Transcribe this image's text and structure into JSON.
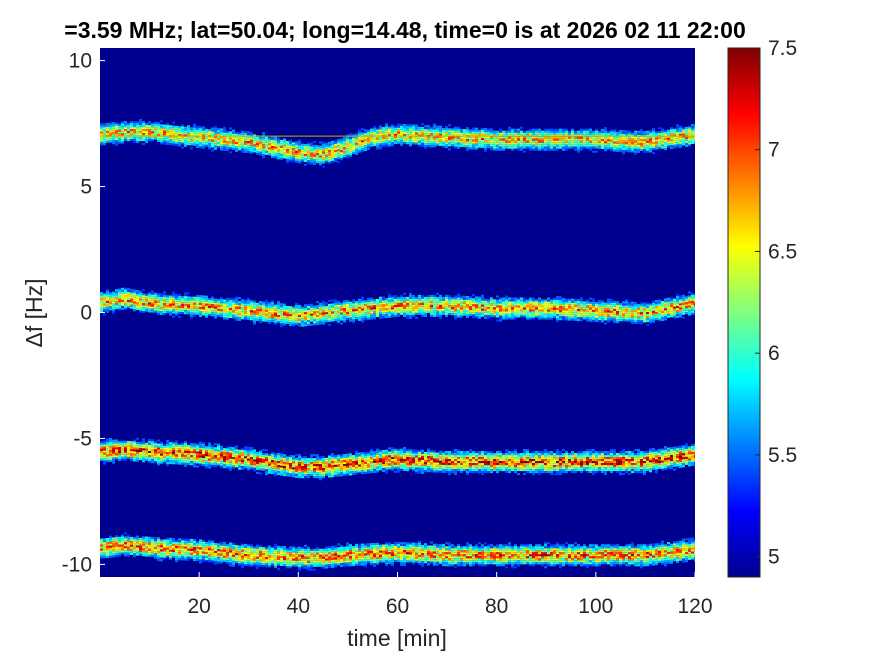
{
  "chart_data": {
    "type": "heatmap",
    "title": "=3.59 MHz;  lat=50.04; long=14.48, time=0 is at 2026 02 11 22:00",
    "xlabel": "time [min]",
    "ylabel": "Δf [Hz]",
    "xlim": [
      0,
      120
    ],
    "ylim": [
      -10.5,
      10.5
    ],
    "xticks": [
      "20",
      "40",
      "60",
      "80",
      "100",
      "120"
    ],
    "yticks": [
      "10",
      "5",
      "0",
      "-5",
      "-10"
    ],
    "background_level": 5.0,
    "colorbar": {
      "range": [
        4.9,
        7.5
      ],
      "ticks": [
        "7.5",
        "7",
        "6.5",
        "6",
        "5.5",
        "5"
      ],
      "colormap": "jet"
    },
    "horizontal_line_hz": 7.0,
    "bands": [
      {
        "name": "",
        "peak": 7.0,
        "t": [
          0,
          5,
          10,
          20,
          30,
          40,
          45,
          50,
          55,
          60,
          70,
          80,
          90,
          100,
          110,
          120
        ],
        "df": [
          7.1,
          7.2,
          7.2,
          7.0,
          6.8,
          6.4,
          6.3,
          6.6,
          7.0,
          7.1,
          7.0,
          6.9,
          6.9,
          6.9,
          6.8,
          7.1
        ]
      },
      {
        "name": "",
        "peak": 7.1,
        "t": [
          0,
          5,
          10,
          20,
          30,
          40,
          45,
          50,
          60,
          70,
          80,
          90,
          100,
          110,
          120
        ],
        "df": [
          0.4,
          0.6,
          0.4,
          0.3,
          0.1,
          -0.1,
          0.0,
          0.1,
          0.3,
          0.3,
          0.2,
          0.2,
          0.1,
          0.0,
          0.4
        ]
      },
      {
        "name": "",
        "peak": 7.4,
        "t": [
          0,
          5,
          10,
          20,
          30,
          40,
          45,
          50,
          60,
          70,
          80,
          90,
          100,
          110,
          120
        ],
        "df": [
          -5.5,
          -5.4,
          -5.5,
          -5.6,
          -5.8,
          -6.1,
          -6.1,
          -6.0,
          -5.8,
          -5.9,
          -5.9,
          -5.9,
          -5.9,
          -5.9,
          -5.6
        ]
      },
      {
        "name": "",
        "peak": 7.2,
        "t": [
          0,
          5,
          10,
          20,
          30,
          40,
          45,
          50,
          60,
          70,
          80,
          90,
          100,
          110,
          120
        ],
        "df": [
          -9.3,
          -9.2,
          -9.3,
          -9.4,
          -9.6,
          -9.7,
          -9.7,
          -9.6,
          -9.5,
          -9.6,
          -9.6,
          -9.6,
          -9.6,
          -9.6,
          -9.4
        ]
      }
    ]
  }
}
